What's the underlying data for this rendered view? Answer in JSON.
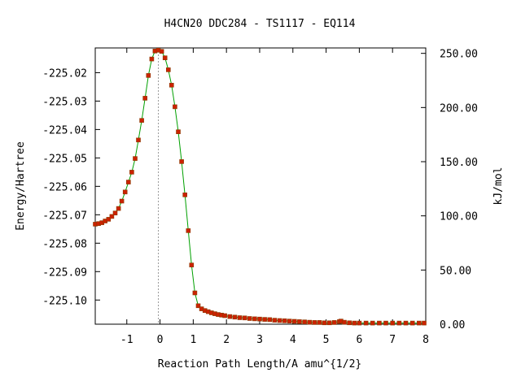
{
  "chart_data": {
    "type": "line",
    "title": "H4CN20   DDC284 - TS1117 - EQ114",
    "xlabel": "Reaction Path Length/A amu^{1/2}",
    "ylabel": "Energy/Hartree",
    "y2label": "kJ/mol",
    "xlim": [
      -1.95,
      8.0
    ],
    "ylim": [
      -225.1085,
      -225.0113
    ],
    "y2lim": [
      0.0,
      255.0
    ],
    "xticks": [
      -1,
      0,
      1,
      2,
      3,
      4,
      5,
      6,
      7,
      8
    ],
    "yticks": [
      -225.02,
      -225.03,
      -225.04,
      -225.05,
      -225.06,
      -225.07,
      -225.08,
      -225.09,
      -225.1
    ],
    "y2ticks": [
      0.0,
      50.0,
      100.0,
      150.0,
      200.0,
      250.0
    ],
    "xtick_labels": [
      "-1",
      "0",
      "1",
      "2",
      "3",
      "4",
      "5",
      "6",
      "7",
      "8"
    ],
    "ytick_labels": [
      "-225.02",
      "-225.03",
      "-225.04",
      "-225.05",
      "-225.06",
      "-225.07",
      "-225.08",
      "-225.09",
      "-225.10"
    ],
    "y2tick_labels": [
      "0.00",
      "50.00",
      "100.00",
      "150.00",
      "200.00",
      "250.00"
    ],
    "ts_marker_x": -0.05,
    "colors": {
      "line": "#00a000",
      "marker": "#cc2200",
      "ts_line": "#999999"
    },
    "series": [
      {
        "x": [
          -1.95,
          -1.85,
          -1.75,
          -1.65,
          -1.55,
          -1.45,
          -1.35,
          -1.25,
          -1.15,
          -1.05,
          -0.95,
          -0.85,
          -0.75,
          -0.65,
          -0.55,
          -0.45,
          -0.35,
          -0.25,
          -0.15,
          -0.05,
          0.05,
          0.15,
          0.25,
          0.35,
          0.45,
          0.55,
          0.65,
          0.75,
          0.85,
          0.95,
          1.05,
          1.15,
          1.25,
          1.35,
          1.45,
          1.55,
          1.65,
          1.75,
          1.85,
          1.95,
          2.1,
          2.25,
          2.4,
          2.55,
          2.7,
          2.85,
          3.0,
          3.15,
          3.3,
          3.45,
          3.6,
          3.75,
          3.9,
          4.05,
          4.2,
          4.35,
          4.5,
          4.65,
          4.8,
          4.95,
          5.1,
          5.25,
          5.4,
          5.45,
          5.55,
          5.7,
          5.85,
          6.0,
          6.2,
          6.4,
          6.6,
          6.8,
          7.0,
          7.2,
          7.4,
          7.6,
          7.8,
          7.95
        ],
        "y": [
          -225.0733,
          -225.0731,
          -225.0728,
          -225.0722,
          -225.0716,
          -225.0706,
          -225.0694,
          -225.0678,
          -225.0652,
          -225.062,
          -225.0585,
          -225.055,
          -225.0502,
          -225.0437,
          -225.0368,
          -225.029,
          -225.021,
          -225.0152,
          -225.0124,
          -225.0121,
          -225.0125,
          -225.0148,
          -225.019,
          -225.0244,
          -225.032,
          -225.0408,
          -225.0513,
          -225.063,
          -225.0756,
          -225.0877,
          -225.0975,
          -225.102,
          -225.1031,
          -225.1037,
          -225.1041,
          -225.1045,
          -225.1048,
          -225.1051,
          -225.1053,
          -225.1055,
          -225.1058,
          -225.106,
          -225.1062,
          -225.1063,
          -225.1065,
          -225.1066,
          -225.1067,
          -225.1068,
          -225.1069,
          -225.1071,
          -225.1072,
          -225.1073,
          -225.1074,
          -225.1075,
          -225.1076,
          -225.1077,
          -225.1078,
          -225.1079,
          -225.1079,
          -225.108,
          -225.108,
          -225.1079,
          -225.1076,
          -225.1074,
          -225.1078,
          -225.108,
          -225.1081,
          -225.1081,
          -225.1081,
          -225.1081,
          -225.1081,
          -225.1081,
          -225.1081,
          -225.1081,
          -225.1081,
          -225.1081,
          -225.1081,
          -225.1081
        ]
      }
    ]
  }
}
